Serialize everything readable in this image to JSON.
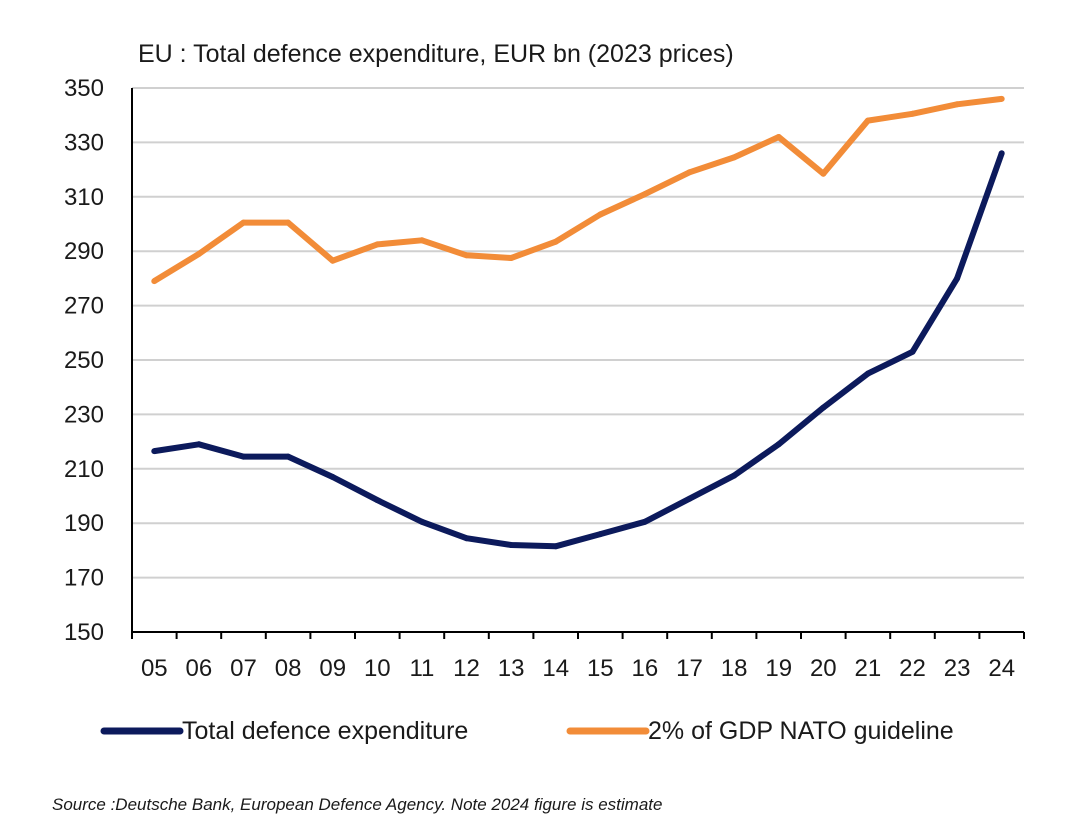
{
  "chart_data": {
    "type": "line",
    "title": "EU : Total defence expenditure, EUR bn (2023 prices)",
    "categories": [
      "05",
      "06",
      "07",
      "08",
      "09",
      "10",
      "11",
      "12",
      "13",
      "14",
      "15",
      "16",
      "17",
      "18",
      "19",
      "20",
      "21",
      "22",
      "23",
      "24"
    ],
    "ylim": [
      150,
      350
    ],
    "yticks": [
      "150",
      "170",
      "190",
      "210",
      "230",
      "250",
      "270",
      "290",
      "310",
      "330",
      "350"
    ],
    "grid": true,
    "legend_position": "bottom",
    "series": [
      {
        "name": "Total defence expenditure",
        "color": "#0c1a5c",
        "values": [
          216.5,
          219,
          214.5,
          214.5,
          207,
          198.5,
          190.5,
          184.5,
          182,
          181.5,
          186,
          190.5,
          199,
          207.5,
          219,
          232.5,
          245,
          253,
          280,
          326
        ]
      },
      {
        "name": "2% of GDP NATO guideline",
        "color": "#f28c38",
        "values": [
          279,
          289,
          300.5,
          300.5,
          286.5,
          292.5,
          294,
          288.5,
          287.5,
          293.5,
          303.5,
          311,
          319,
          324.5,
          332,
          318.5,
          338,
          340.5,
          344,
          346
        ]
      }
    ],
    "note": "Source :Deutsche Bank, European Defence Agency. Note 2024 figure is estimate"
  }
}
